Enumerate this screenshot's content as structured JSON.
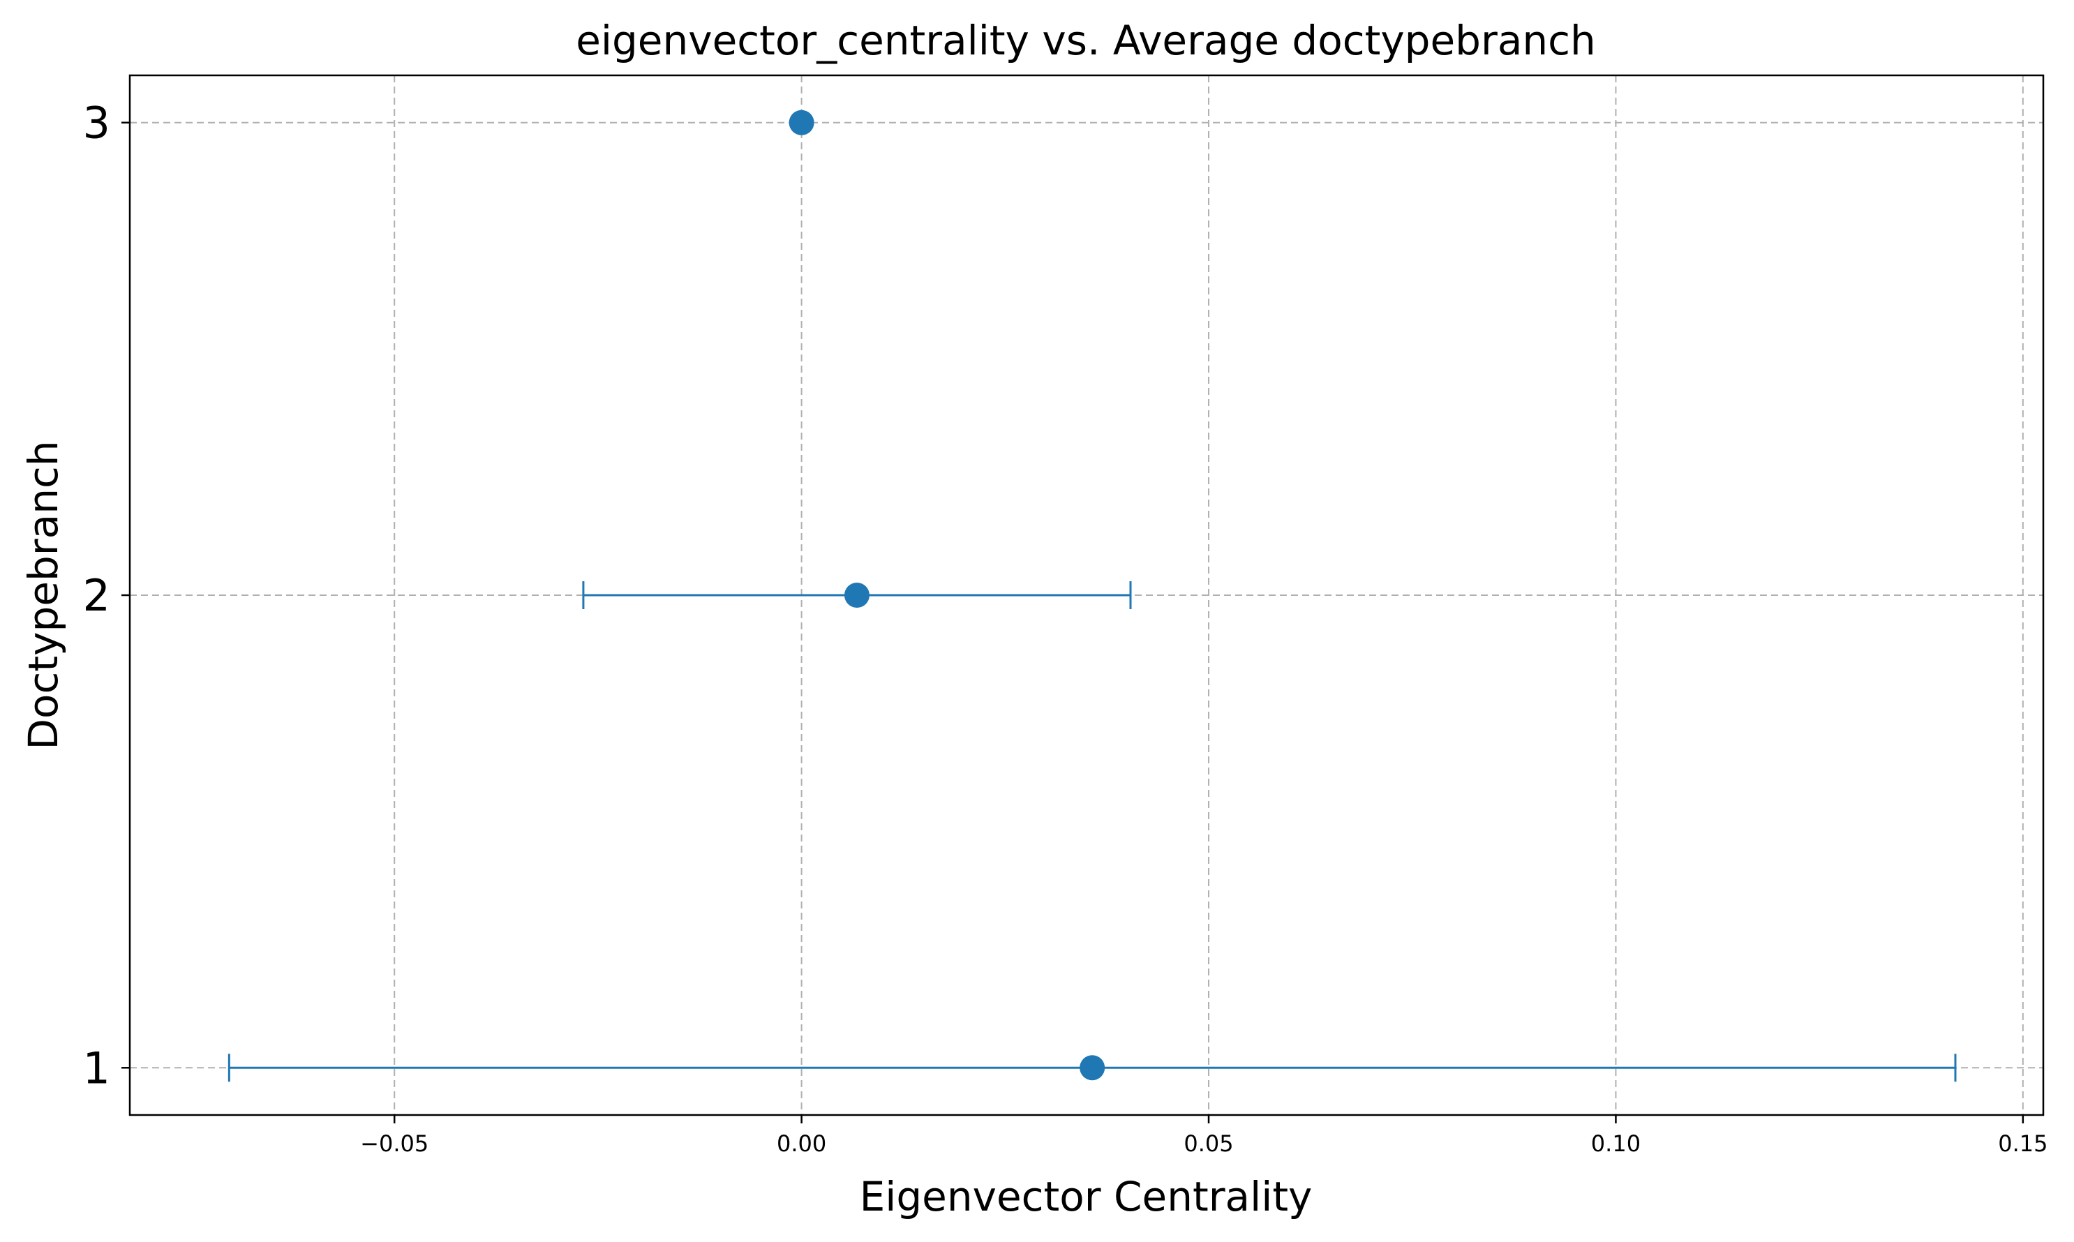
{
  "chart_data": {
    "type": "scatter",
    "title": "eigenvector_centrality vs. Average doctypebranch",
    "xlabel": "Eigenvector Centrality",
    "ylabel": "Doctypebranch",
    "xlim": [
      -0.0825,
      0.1525
    ],
    "ylim": [
      0.9,
      3.1
    ],
    "xticks": [
      -0.05,
      0.0,
      0.05,
      0.1,
      0.15
    ],
    "xtick_labels": [
      "−0.05",
      "0.00",
      "0.05",
      "0.10",
      "0.15"
    ],
    "yticks": [
      1,
      2,
      3
    ],
    "ytick_labels": [
      "1",
      "2",
      "3"
    ],
    "grid": true,
    "color": "#1f77b4",
    "points": [
      {
        "y": 3,
        "x": 0.0,
        "xerr_low": 0.0,
        "xerr_high": 0.0
      },
      {
        "y": 2,
        "x": 0.0068,
        "xerr_low": -0.0268,
        "xerr_high": 0.0404
      },
      {
        "y": 1,
        "x": 0.0357,
        "xerr_low": -0.0703,
        "xerr_high": 0.1417
      }
    ]
  }
}
